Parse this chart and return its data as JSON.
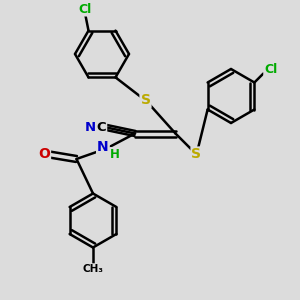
{
  "bg_color": "#dcdcdc",
  "bond_color": "#000000",
  "bond_width": 1.8,
  "atom_colors": {
    "C": "#000000",
    "N": "#0000cc",
    "O": "#cc0000",
    "S": "#bbaa00",
    "Cl": "#00aa00",
    "H": "#00aa00"
  },
  "figsize": [
    3.0,
    3.0
  ],
  "dpi": 100
}
